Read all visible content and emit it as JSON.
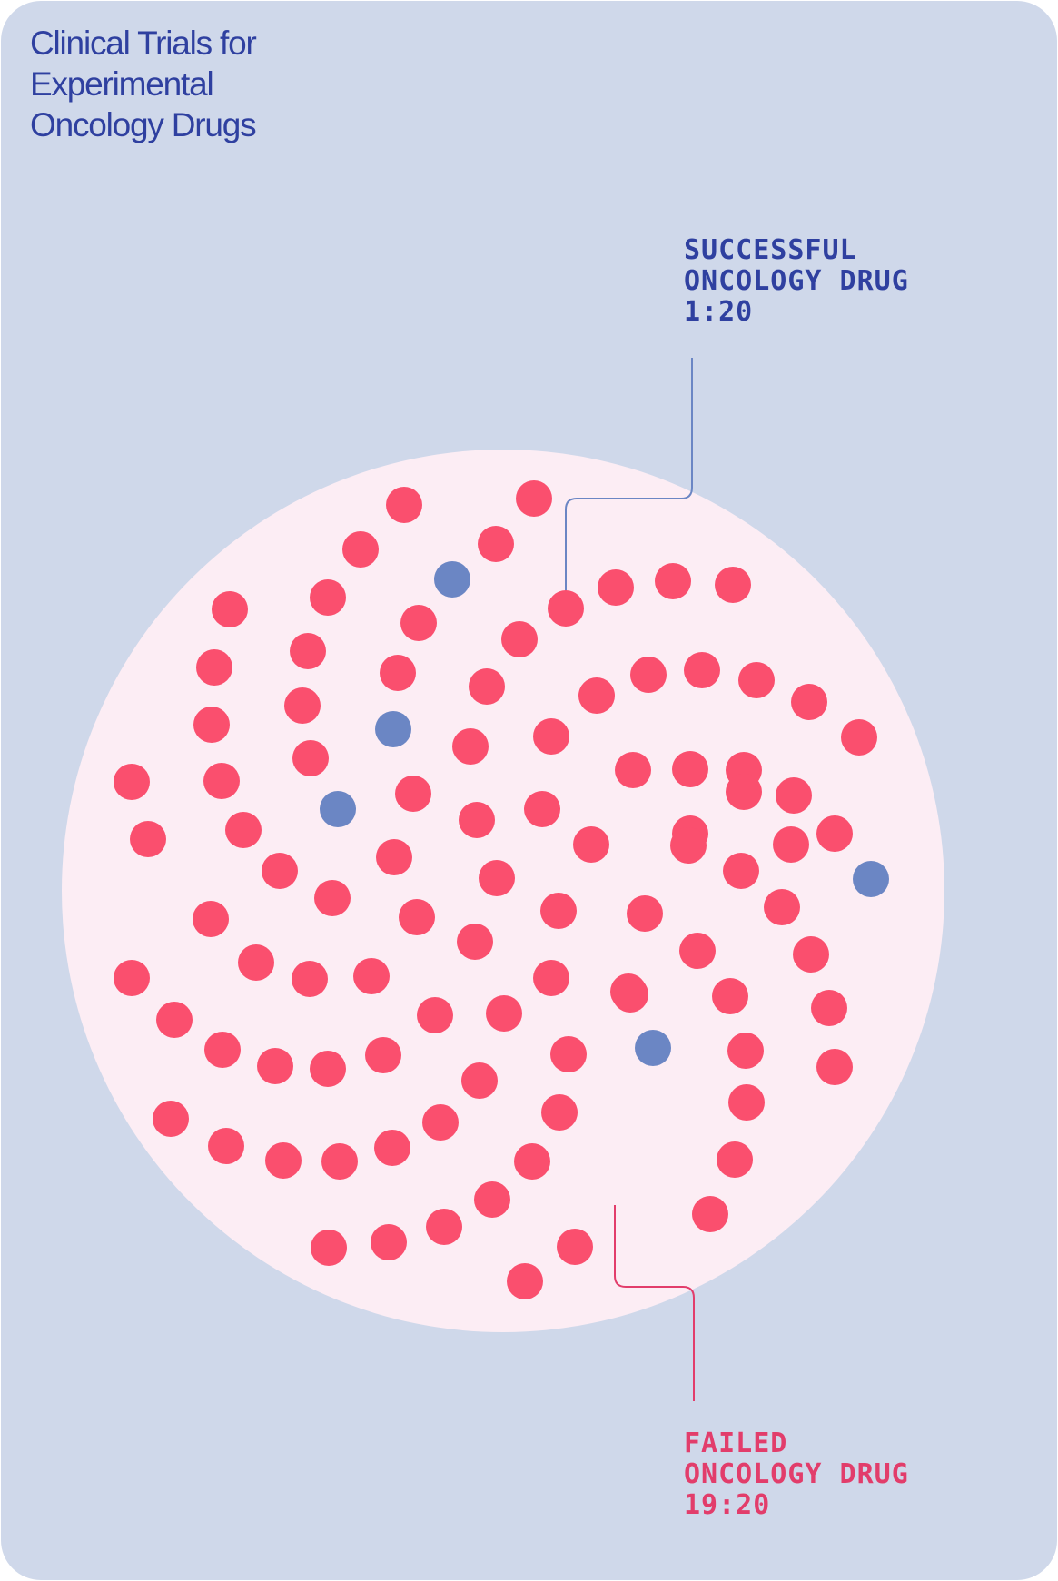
{
  "title": {
    "line1": "Clinical Trials for",
    "line2": "Experimental",
    "line3": "Oncology Drugs"
  },
  "callouts": {
    "success": {
      "line1": "SUCCESSFUL",
      "line2": "ONCOLOGY DRUG",
      "ratio": "1:20"
    },
    "failed": {
      "line1": "FAILED",
      "line2": "ONCOLOGY DRUG",
      "ratio": "19:20"
    }
  },
  "colors": {
    "background": "#cfd8ea",
    "circle": "#fcedf4",
    "success": "#6b86c4",
    "failed": "#fa4f6e",
    "title": "#2f40a0",
    "failed_text": "#e23d6b"
  },
  "chart_data": {
    "type": "unit-dot",
    "categories": [
      "Successful oncology drug",
      "Failed oncology drug"
    ],
    "values": [
      5,
      95
    ],
    "ratios": [
      "1:20",
      "19:20"
    ]
  }
}
